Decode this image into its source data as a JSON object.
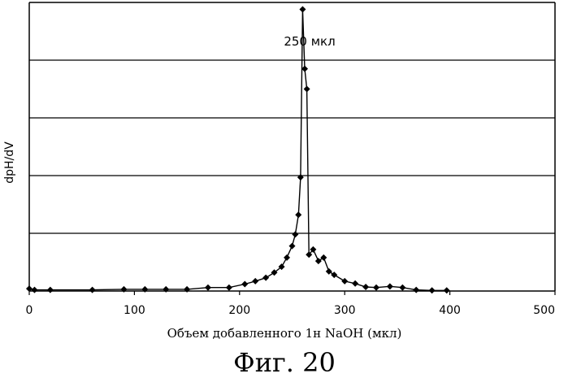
{
  "figure_caption": "Фиг. 20",
  "chart_data": {
    "type": "line",
    "title": "",
    "xlabel": "Объем добавленного 1н NaOH (мкл)",
    "ylabel": "dpH/dV",
    "xlim": [
      0,
      500
    ],
    "ylim": [
      0,
      5
    ],
    "x_ticks": [
      "0",
      "100",
      "200",
      "300",
      "400",
      "500"
    ],
    "y_ticks_labeled": false,
    "grid": "horizontal",
    "annotation": {
      "text": "250 мкл",
      "x": 260,
      "y": 4.9
    },
    "series": [
      {
        "marker": "diamond",
        "x": [
          0,
          5,
          20,
          60,
          90,
          110,
          130,
          150,
          170,
          190,
          205,
          215,
          225,
          233,
          240,
          245,
          250,
          253,
          256,
          258,
          260,
          262,
          264,
          266,
          270,
          275,
          280,
          285,
          290,
          300,
          310,
          320,
          330,
          343,
          355,
          368,
          383,
          397
        ],
        "y": [
          0.04,
          0.02,
          0.02,
          0.02,
          0.03,
          0.03,
          0.03,
          0.03,
          0.06,
          0.06,
          0.12,
          0.17,
          0.23,
          0.32,
          0.42,
          0.58,
          0.78,
          0.98,
          1.32,
          1.97,
          4.88,
          3.85,
          3.5,
          0.63,
          0.72,
          0.52,
          0.58,
          0.34,
          0.28,
          0.17,
          0.13,
          0.07,
          0.06,
          0.08,
          0.06,
          0.02,
          0.01,
          0.01
        ]
      }
    ]
  }
}
